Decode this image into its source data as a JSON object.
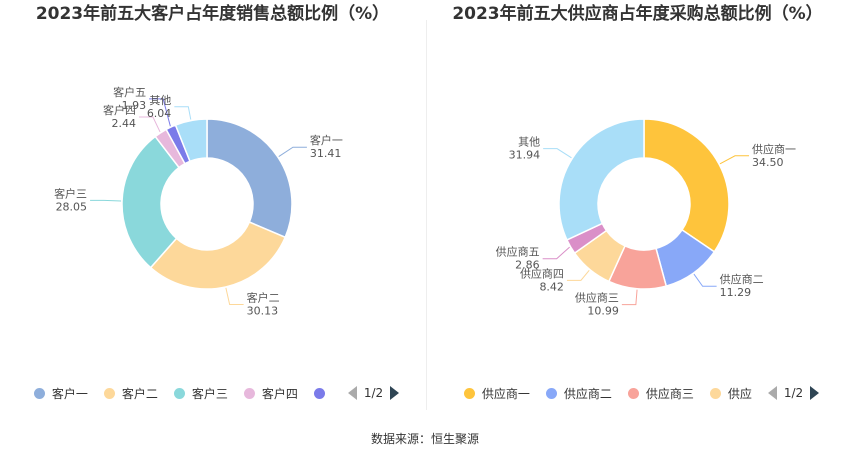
{
  "chart_data": [
    {
      "type": "pie",
      "title": "2023年前五大客户占年度销售总额比例（%）",
      "categories": [
        "客户一",
        "客户二",
        "客户三",
        "客户四",
        "客户五",
        "其他"
      ],
      "values": [
        31.41,
        30.13,
        28.05,
        2.44,
        1.93,
        6.04
      ],
      "colors": [
        "#8eaedb",
        "#fdd89a",
        "#8ad8db",
        "#e7b8dc",
        "#7b7be9",
        "#a9def8"
      ],
      "legend": {
        "placement": "bottom",
        "items": [
          "客户一",
          "客户二",
          "客户三",
          "客户四",
          ""
        ],
        "item_colors": [
          "#8eaedb",
          "#fdd89a",
          "#8ad8db",
          "#e7b8dc",
          "#7b7be9"
        ],
        "page": "1/2"
      }
    },
    {
      "type": "pie",
      "title": "2023年前五大供应商占年度采购总额比例（%）",
      "categories": [
        "供应商一",
        "供应商二",
        "供应商三",
        "供应商四",
        "供应商五",
        "其他"
      ],
      "values": [
        34.5,
        11.29,
        10.99,
        8.42,
        2.86,
        31.94
      ],
      "colors": [
        "#fec43c",
        "#88a8f8",
        "#f8a39a",
        "#fdd89a",
        "#da8fc8",
        "#a9def8"
      ],
      "legend": {
        "placement": "bottom",
        "items": [
          "供应商一",
          "供应商二",
          "供应商三",
          "供应"
        ],
        "item_colors": [
          "#fec43c",
          "#88a8f8",
          "#f8a39a",
          "#fdd89a"
        ],
        "page": "1/2"
      }
    }
  ],
  "footer": "数据来源：恒生聚源"
}
